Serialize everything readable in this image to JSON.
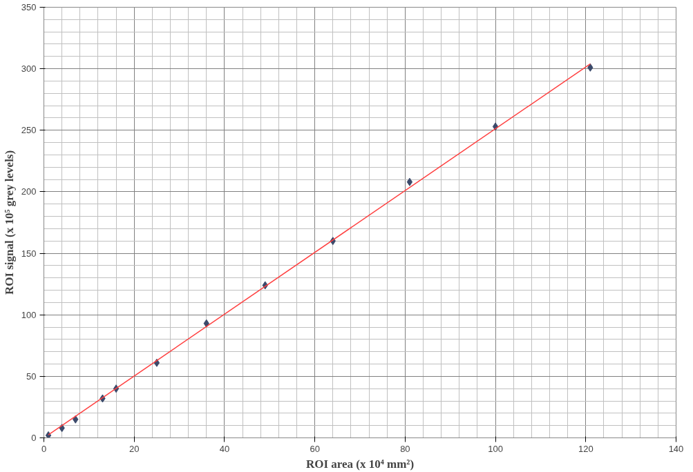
{
  "chart_data": {
    "type": "scatter",
    "xlabel": "ROI area (x 10⁴ mm²)",
    "ylabel": "ROI signal (x 10⁵ grey levels)",
    "xlim": [
      0,
      140
    ],
    "ylim": [
      0,
      350
    ],
    "xticks": [
      0,
      20,
      40,
      60,
      80,
      100,
      120,
      140
    ],
    "yticks": [
      0,
      50,
      100,
      150,
      200,
      250,
      300,
      350
    ],
    "grid": true,
    "series": [
      {
        "marker": "diamond",
        "color": "#3b4a6b",
        "x": [
          1,
          4,
          7,
          13,
          16,
          25,
          36,
          49,
          64,
          81,
          100,
          121
        ],
        "values": [
          2,
          8,
          15,
          32,
          40,
          61,
          93,
          124,
          160,
          208,
          253,
          301
        ]
      },
      {
        "type": "line",
        "color": "#ff4040",
        "x": [
          1,
          121
        ],
        "values": [
          2.5,
          304
        ]
      }
    ]
  }
}
